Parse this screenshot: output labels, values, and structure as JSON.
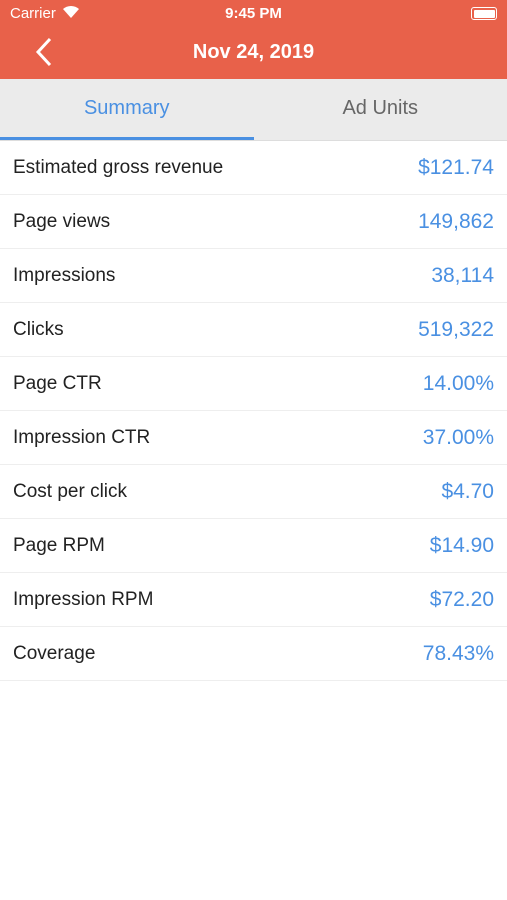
{
  "status_bar": {
    "carrier": "Carrier",
    "time": "9:45 PM"
  },
  "nav": {
    "title": "Nov 24, 2019"
  },
  "tabs": [
    "Summary",
    "Ad Units"
  ],
  "rows": [
    {
      "label": "Estimated gross revenue",
      "value": "$121.74"
    },
    {
      "label": "Page views",
      "value": "149,862"
    },
    {
      "label": "Impressions",
      "value": "38,114"
    },
    {
      "label": "Clicks",
      "value": "519,322"
    },
    {
      "label": "Page CTR",
      "value": "14.00%"
    },
    {
      "label": "Impression CTR",
      "value": "37.00%"
    },
    {
      "label": "Cost per click",
      "value": "$4.70"
    },
    {
      "label": "Page RPM",
      "value": "$14.90"
    },
    {
      "label": "Impression RPM",
      "value": "$72.20"
    },
    {
      "label": "Coverage",
      "value": "78.43%"
    }
  ]
}
